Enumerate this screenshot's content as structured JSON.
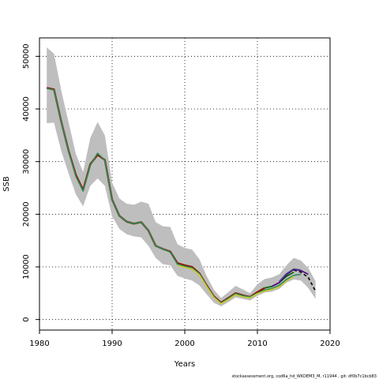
{
  "chart_data": {
    "type": "line",
    "title": "",
    "xlabel": "Years",
    "ylabel": "SSB",
    "xlim": [
      1980,
      2020
    ],
    "ylim": [
      -2000,
      53500
    ],
    "x_ticks": [
      1980,
      1990,
      2000,
      2010,
      2020
    ],
    "y_ticks": [
      0,
      10000,
      20000,
      30000,
      40000,
      50000
    ],
    "grid": true,
    "legend": "none",
    "footnote": "stockassessment.org, cod6a_hd_WKDEM3_M, r11944 , git: df0b7c1bcb83",
    "band": {
      "color": "#bebebe",
      "x": [
        1981,
        1982,
        1983,
        1984,
        1985,
        1986,
        1987,
        1988,
        1989,
        1990,
        1991,
        1992,
        1993,
        1994,
        1995,
        1996,
        1997,
        1998,
        1999,
        2000,
        2001,
        2002,
        2003,
        2004,
        2005,
        2006,
        2007,
        2008,
        2009,
        2010,
        2011,
        2012,
        2013,
        2014,
        2015,
        2016,
        2017,
        2018
      ],
      "upper": [
        51700,
        50500,
        43500,
        37500,
        31500,
        28000,
        34500,
        37500,
        35000,
        26000,
        23000,
        22000,
        21800,
        22400,
        22000,
        18500,
        17700,
        17600,
        14300,
        13600,
        13300,
        11500,
        8300,
        5700,
        4100,
        5200,
        6400,
        5700,
        5000,
        6700,
        7700,
        8000,
        8600,
        10300,
        11700,
        11200,
        9800,
        7300
      ],
      "lower": [
        37300,
        37400,
        32000,
        27800,
        23800,
        21500,
        25400,
        26800,
        25400,
        19600,
        17200,
        16200,
        15800,
        15600,
        14000,
        11700,
        10500,
        10300,
        8300,
        7800,
        7400,
        6500,
        4800,
        3200,
        2500,
        3300,
        4200,
        3900,
        3600,
        4500,
        5100,
        5300,
        5800,
        7000,
        7600,
        7400,
        6000,
        3900
      ]
    },
    "series": [
      {
        "color": "#8b1a00",
        "x": [
          1981,
          1982,
          1983,
          1984,
          1985,
          1986,
          1987,
          1988,
          1989,
          1990,
          1991,
          1992,
          1993,
          1994,
          1995,
          1996,
          1997,
          1998,
          1999,
          2000,
          2001,
          2002,
          2003,
          2004,
          2005,
          2006,
          2007,
          2008,
          2009,
          2010,
          2011
        ],
        "values": [
          44000,
          43700,
          37600,
          32100,
          27500,
          24600,
          29500,
          31300,
          30300,
          22800,
          19700,
          18600,
          18200,
          18500,
          16900,
          14000,
          13400,
          12900,
          10700,
          10300,
          10000,
          8800,
          6500,
          4400,
          3200,
          4100,
          5000,
          4600,
          4300,
          5200,
          6000
        ]
      },
      {
        "color": "#000000",
        "dash": true,
        "x": [
          2015,
          2016,
          2017,
          2018
        ],
        "values": [
          9400,
          9000,
          8000,
          5400
        ]
      },
      {
        "color": "#2e8b57",
        "x": [
          1981,
          1982,
          1983,
          1984,
          1985,
          1986,
          1987,
          1988,
          1989,
          1990,
          1991,
          1992,
          1993,
          1994,
          1995,
          1996,
          1997,
          1998,
          1999,
          2000,
          2001,
          2002,
          2003,
          2004,
          2005,
          2006,
          2007,
          2008,
          2009,
          2010,
          2011,
          2012,
          2013,
          2014,
          2015,
          2016
        ],
        "values": [
          43900,
          43600,
          37600,
          32000,
          27200,
          24400,
          29300,
          31600,
          30200,
          22800,
          19700,
          18600,
          18200,
          18500,
          16900,
          14000,
          13400,
          12800,
          10500,
          10100,
          9800,
          8700,
          6400,
          4300,
          3100,
          4000,
          4900,
          4500,
          4300,
          5000,
          5600,
          5900,
          6500,
          7600,
          8400,
          8600
        ]
      },
      {
        "color": "#c8c832",
        "x": [
          1999,
          2000,
          2001,
          2002,
          2003,
          2004,
          2005,
          2006,
          2007,
          2008,
          2009,
          2010,
          2011,
          2012,
          2013,
          2014,
          2015
        ],
        "values": [
          10300,
          9900,
          9600,
          8500,
          6300,
          4200,
          3000,
          3800,
          4700,
          4300,
          4100,
          4900,
          5400,
          5700,
          6200,
          7300,
          8200
        ]
      },
      {
        "color": "#006400",
        "x": [
          2011,
          2012,
          2013,
          2014,
          2015
        ],
        "values": [
          6000,
          6300,
          7000,
          8200,
          9000
        ]
      },
      {
        "color": "#4b0082",
        "x": [
          2012,
          2013,
          2014,
          2015,
          2016,
          2017
        ],
        "values": [
          6300,
          7000,
          8500,
          9500,
          9300,
          8600
        ]
      },
      {
        "color": "#483d8b",
        "x": [
          2013,
          2014,
          2015,
          2016
        ],
        "values": [
          7200,
          8700,
          9600,
          9400
        ]
      }
    ]
  }
}
